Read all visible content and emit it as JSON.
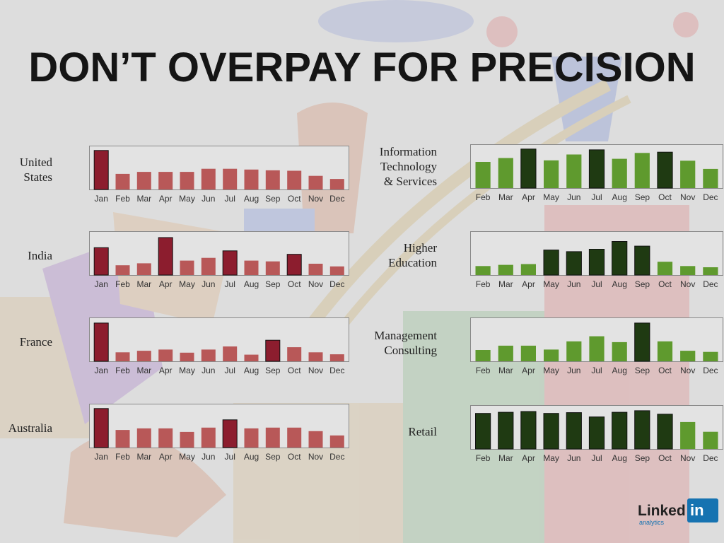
{
  "slide": {
    "title": "DON’T OVERPAY FOR PRECISION",
    "logo": {
      "text": "Linked",
      "box_text": "in",
      "sub": "analytics"
    }
  },
  "colors": {
    "red_dark": "#8c1d2e",
    "red_light": "#b85858",
    "green_dark": "#1f3a12",
    "green_light": "#5f9a2e",
    "panel_border": "#8a8a8a",
    "panel_fill": "#e3e3e3"
  },
  "chart_data": [
    {
      "type": "bar",
      "label": "United\nStates",
      "palette": "red",
      "categories": [
        "Jan",
        "Feb",
        "Mar",
        "Apr",
        "May",
        "Jun",
        "Jul",
        "Aug",
        "Sep",
        "Oct",
        "Nov",
        "Dec"
      ],
      "values": [
        10,
        4,
        4.5,
        4.5,
        4.5,
        5.3,
        5.3,
        5.1,
        4.9,
        4.8,
        3.5,
        2.7
      ],
      "highlight": [
        true,
        false,
        false,
        false,
        false,
        false,
        false,
        false,
        false,
        false,
        false,
        false
      ],
      "ylim": [
        0,
        10.5
      ]
    },
    {
      "type": "bar",
      "label": "India",
      "palette": "red",
      "categories": [
        "Jan",
        "Feb",
        "Mar",
        "Apr",
        "May",
        "Jun",
        "Jul",
        "Aug",
        "Sep",
        "Oct",
        "Nov",
        "Dec"
      ],
      "values": [
        7.0,
        2.5,
        3.0,
        9.6,
        3.7,
        4.4,
        6.2,
        3.7,
        3.5,
        5.3,
        2.9,
        2.2
      ],
      "highlight": [
        true,
        false,
        false,
        true,
        false,
        false,
        true,
        false,
        false,
        true,
        false,
        false
      ],
      "ylim": [
        0,
        10.5
      ]
    },
    {
      "type": "bar",
      "label": "France",
      "palette": "red",
      "categories": [
        "Jan",
        "Feb",
        "Mar",
        "Apr",
        "May",
        "Jun",
        "Jul",
        "Aug",
        "Sep",
        "Oct",
        "Nov",
        "Dec"
      ],
      "values": [
        9.8,
        2.3,
        2.7,
        3.0,
        2.2,
        3.0,
        3.8,
        1.7,
        5.4,
        3.6,
        2.3,
        1.8
      ],
      "highlight": [
        true,
        false,
        false,
        false,
        false,
        false,
        false,
        false,
        true,
        false,
        false,
        false
      ],
      "ylim": [
        0,
        10.5
      ]
    },
    {
      "type": "bar",
      "label": "Australia",
      "palette": "red",
      "categories": [
        "Jan",
        "Feb",
        "Mar",
        "Apr",
        "May",
        "Jun",
        "Jul",
        "Aug",
        "Sep",
        "Oct",
        "Nov",
        "Dec"
      ],
      "values": [
        10,
        4.5,
        4.9,
        4.9,
        4.0,
        5.1,
        7.1,
        4.9,
        5.1,
        5.1,
        4.2,
        3.1
      ],
      "highlight": [
        true,
        false,
        false,
        false,
        false,
        false,
        true,
        false,
        false,
        false,
        false,
        false
      ],
      "ylim": [
        0,
        10.5
      ]
    },
    {
      "type": "bar",
      "label": "Information\nTechnology\n& Services",
      "palette": "green",
      "categories": [
        "Feb",
        "Mar",
        "Apr",
        "May",
        "Jun",
        "Jul",
        "Aug",
        "Sep",
        "Oct",
        "Nov",
        "Dec"
      ],
      "values": [
        6.7,
        7.7,
        10,
        7.1,
        8.6,
        9.8,
        7.5,
        9.0,
        9.2,
        7.0,
        4.9
      ],
      "highlight": [
        false,
        false,
        true,
        false,
        false,
        true,
        false,
        false,
        true,
        false,
        false
      ],
      "ylim": [
        0,
        10.5
      ]
    },
    {
      "type": "bar",
      "label": "Higher\nEducation",
      "palette": "green",
      "categories": [
        "Feb",
        "Mar",
        "Apr",
        "May",
        "Jun",
        "Jul",
        "Aug",
        "Sep",
        "Oct",
        "Nov",
        "Dec"
      ],
      "values": [
        2.3,
        2.6,
        2.8,
        6.4,
        6.0,
        6.6,
        8.6,
        7.4,
        3.4,
        2.3,
        2.0
      ],
      "highlight": [
        false,
        false,
        false,
        true,
        true,
        true,
        true,
        true,
        false,
        false,
        false
      ],
      "ylim": [
        0,
        10.5
      ]
    },
    {
      "type": "bar",
      "label": "Management\nConsulting",
      "palette": "green",
      "categories": [
        "Feb",
        "Mar",
        "Apr",
        "May",
        "Jun",
        "Jul",
        "Aug",
        "Sep",
        "Oct",
        "Nov",
        "Dec"
      ],
      "values": [
        2.9,
        4.0,
        4.0,
        3.0,
        5.1,
        6.4,
        4.9,
        9.8,
        5.1,
        2.7,
        2.4
      ],
      "highlight": [
        false,
        false,
        false,
        false,
        false,
        false,
        false,
        true,
        false,
        false,
        false
      ],
      "ylim": [
        0,
        10.5
      ]
    },
    {
      "type": "bar",
      "label": "Retail",
      "palette": "green",
      "categories": [
        "Feb",
        "Mar",
        "Apr",
        "May",
        "Jun",
        "Jul",
        "Aug",
        "Sep",
        "Oct",
        "Nov",
        "Dec"
      ],
      "values": [
        9.1,
        9.4,
        9.6,
        9.1,
        9.3,
        8.2,
        9.4,
        9.8,
        8.9,
        6.9,
        4.4
      ],
      "highlight": [
        true,
        true,
        true,
        true,
        true,
        true,
        true,
        true,
        true,
        false,
        false
      ],
      "ylim": [
        0,
        10.5
      ]
    }
  ]
}
